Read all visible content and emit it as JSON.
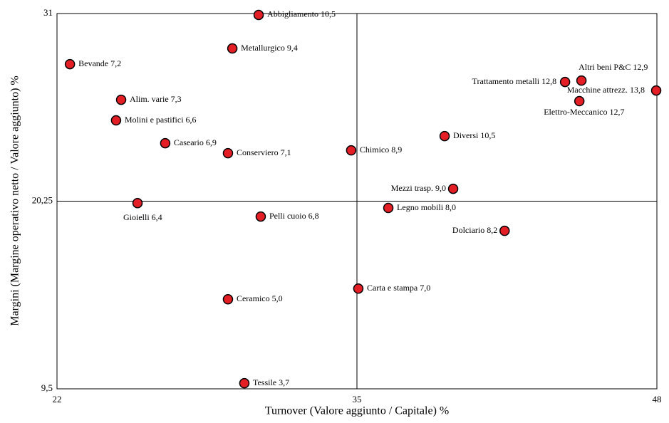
{
  "chart_data": {
    "type": "scatter",
    "xlabel": "Turnover (Valore aggiunto / Capitale) %",
    "ylabel": "Margini (Margine operativo netto / Valore aggiunto) %",
    "xlim": [
      22,
      48
    ],
    "xticks": [
      22,
      35,
      48
    ],
    "ylim": [
      9.5,
      31
    ],
    "yticks": [
      {
        "value": 9.5,
        "label": "9,5"
      },
      {
        "value": 20.25,
        "label": "20,25"
      },
      31
    ],
    "grid": true,
    "color": "#e31e24",
    "labels": [
      "Abbigliamento 10,5",
      "Metallurgico 9,4",
      "Bevande 7,2",
      "Alim. varie 7,3",
      "Molini e pastifici 6,6",
      "Caseario 6,9",
      "Conserviero 7,1",
      "Chimico 8,9",
      "Diversi 10,5",
      "Trattamento metalli 12,8",
      "Altri beni P&C 12,9",
      "Macchine attrezz. 13,8",
      "Elettro-Meccanico 12,7",
      "Mezzi trasp. 9,0",
      "Legno mobili 8,0",
      "Dolciario 8,2",
      "Gioielli 6,4",
      "Pelli cuoio 6,8",
      "Carta e stampa 7,0",
      "Ceramico 5,0",
      "Tessile 3,7"
    ],
    "x": [
      30.74,
      29.6,
      22.56,
      24.78,
      24.56,
      26.69,
      29.41,
      34.75,
      38.8,
      44.02,
      44.73,
      47.97,
      44.64,
      39.17,
      36.36,
      41.4,
      25.49,
      30.83,
      35.06,
      29.41,
      30.12
    ],
    "values": [
      30.92,
      29.0,
      28.1,
      26.06,
      24.88,
      23.57,
      23.0,
      23.16,
      23.98,
      27.08,
      27.16,
      26.59,
      25.98,
      20.96,
      19.86,
      18.55,
      20.14,
      19.37,
      15.24,
      14.63,
      9.82
    ]
  }
}
